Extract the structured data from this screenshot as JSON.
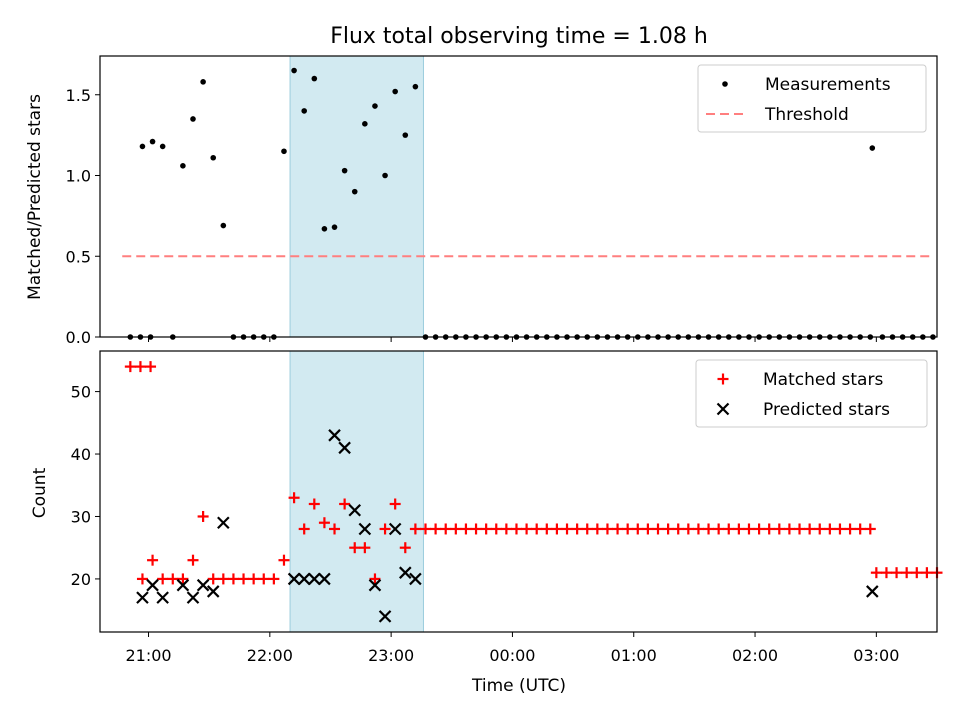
{
  "chart_data": [
    {
      "type": "scatter",
      "title": "Flux total observing time = 1.08 h",
      "xlabel": "",
      "ylabel": "Matched/Predicted stars",
      "ylim": [
        0,
        1.74
      ],
      "yticks": [
        "0.0",
        "0.5",
        "1.0",
        "1.5"
      ],
      "xlim": [
        "20:36",
        "03:30"
      ],
      "grid": false,
      "legend_position": "top-right",
      "shaded_interval": [
        "22:10",
        "23:16"
      ],
      "shaded_color": "#add8e6",
      "threshold": {
        "name": "Threshold",
        "value": 0.5,
        "x_range": [
          "20:47",
          "03:27"
        ],
        "color": "#ff7f7f"
      },
      "series": [
        {
          "name": "Measurements",
          "color": "#000000",
          "x": [
            "20:51",
            "20:56",
            "21:01",
            "20:57",
            "21:02",
            "21:07",
            "21:12",
            "21:17",
            "21:22",
            "21:27",
            "21:32",
            "21:37",
            "21:42",
            "21:47",
            "21:52",
            "21:57",
            "22:02",
            "22:07",
            "22:12",
            "22:17",
            "22:22",
            "22:27",
            "22:32",
            "22:37",
            "22:42",
            "22:47",
            "22:52",
            "22:57",
            "23:02",
            "23:07",
            "23:12",
            "23:17",
            "23:22",
            "23:27",
            "23:32",
            "23:37",
            "23:42",
            "23:47",
            "23:52",
            "23:57",
            "00:02",
            "00:07",
            "00:12",
            "00:17",
            "00:22",
            "00:27",
            "00:32",
            "00:37",
            "00:42",
            "00:47",
            "00:52",
            "00:57",
            "01:02",
            "01:07",
            "01:12",
            "01:17",
            "01:22",
            "01:27",
            "01:32",
            "01:37",
            "01:42",
            "01:47",
            "01:52",
            "01:57",
            "02:02",
            "02:07",
            "02:12",
            "02:17",
            "02:22",
            "02:27",
            "02:32",
            "02:37",
            "02:42",
            "02:47",
            "02:52",
            "02:57",
            "02:58",
            "03:03",
            "03:08",
            "03:13",
            "03:18",
            "03:23",
            "03:28"
          ],
          "y": [
            0,
            0,
            0,
            1.18,
            1.21,
            1.18,
            0,
            1.06,
            1.35,
            1.58,
            1.11,
            0.69,
            0,
            0,
            0,
            0,
            0,
            1.15,
            1.65,
            1.4,
            1.6,
            0.67,
            0.68,
            1.03,
            0.9,
            1.32,
            1.43,
            1.0,
            1.52,
            1.25,
            1.55,
            0,
            0,
            0,
            0,
            0,
            0,
            0,
            0,
            0,
            0,
            0,
            0,
            0,
            0,
            0,
            0,
            0,
            0,
            0,
            0,
            0,
            0,
            0,
            0,
            0,
            0,
            0,
            0,
            0,
            0,
            0,
            0,
            0,
            0,
            0,
            0,
            0,
            0,
            0,
            0,
            0,
            0,
            0,
            0,
            0,
            1.17,
            0,
            0,
            0,
            0,
            0,
            0
          ]
        }
      ]
    },
    {
      "type": "scatter",
      "title": "",
      "xlabel": "Time (UTC)",
      "ylabel": "Count",
      "ylim": [
        11.5,
        56.5
      ],
      "yticks": [
        "20",
        "30",
        "40",
        "50"
      ],
      "xlim": [
        "20:36",
        "03:30"
      ],
      "xticks": [
        "21:00",
        "22:00",
        "23:00",
        "00:00",
        "01:00",
        "02:00",
        "03:00"
      ],
      "grid": false,
      "legend_position": "top-right",
      "shaded_interval": [
        "22:10",
        "23:16"
      ],
      "series": [
        {
          "name": "Matched stars",
          "color": "#ff0000",
          "marker": "+",
          "x": [
            "20:51",
            "20:56",
            "21:01",
            "20:57",
            "21:02",
            "21:07",
            "21:12",
            "21:17",
            "21:22",
            "21:27",
            "21:32",
            "21:37",
            "21:42",
            "21:47",
            "21:52",
            "21:57",
            "22:02",
            "22:07",
            "22:12",
            "22:17",
            "22:22",
            "22:27",
            "22:32",
            "22:37",
            "22:42",
            "22:47",
            "22:52",
            "22:57",
            "23:02",
            "23:07",
            "23:12",
            "23:17",
            "23:22",
            "23:27",
            "23:32",
            "23:37",
            "23:42",
            "23:47",
            "23:52",
            "23:57",
            "00:02",
            "00:07",
            "00:12",
            "00:17",
            "00:22",
            "00:27",
            "00:32",
            "00:37",
            "00:42",
            "00:47",
            "00:52",
            "00:57",
            "01:02",
            "01:07",
            "01:12",
            "01:17",
            "01:22",
            "01:27",
            "01:32",
            "01:37",
            "01:42",
            "01:47",
            "01:52",
            "01:57",
            "02:02",
            "02:07",
            "02:12",
            "02:17",
            "02:22",
            "02:27",
            "02:32",
            "02:37",
            "02:42",
            "02:47",
            "02:52",
            "02:57",
            "03:00",
            "03:05",
            "03:10",
            "03:15",
            "03:20",
            "03:25",
            "03:30"
          ],
          "y": [
            54,
            54,
            54,
            20,
            23,
            20,
            20,
            20,
            23,
            30,
            20,
            20,
            20,
            20,
            20,
            20,
            20,
            23,
            33,
            28,
            32,
            29,
            28,
            32,
            25,
            25,
            20,
            28,
            32,
            25,
            28,
            28,
            28,
            28,
            28,
            28,
            28,
            28,
            28,
            28,
            28,
            28,
            28,
            28,
            28,
            28,
            28,
            28,
            28,
            28,
            28,
            28,
            28,
            28,
            28,
            28,
            28,
            28,
            28,
            28,
            28,
            28,
            28,
            28,
            28,
            28,
            28,
            28,
            28,
            28,
            28,
            28,
            28,
            28,
            28,
            28,
            21,
            21,
            21,
            21,
            21,
            21,
            21
          ]
        },
        {
          "name": "Predicted stars",
          "color": "#000000",
          "marker": "x",
          "x": [
            "20:57",
            "21:02",
            "21:07",
            "21:17",
            "21:22",
            "21:27",
            "21:32",
            "21:37",
            "22:12",
            "22:17",
            "22:22",
            "22:27",
            "22:32",
            "22:37",
            "22:42",
            "22:47",
            "22:52",
            "22:57",
            "23:02",
            "23:07",
            "23:12",
            "02:58"
          ],
          "y": [
            17,
            19,
            17,
            19,
            17,
            19,
            18,
            29,
            20,
            20,
            20,
            20,
            43,
            41,
            31,
            28,
            19,
            14,
            28,
            21,
            20,
            18
          ]
        }
      ]
    }
  ]
}
